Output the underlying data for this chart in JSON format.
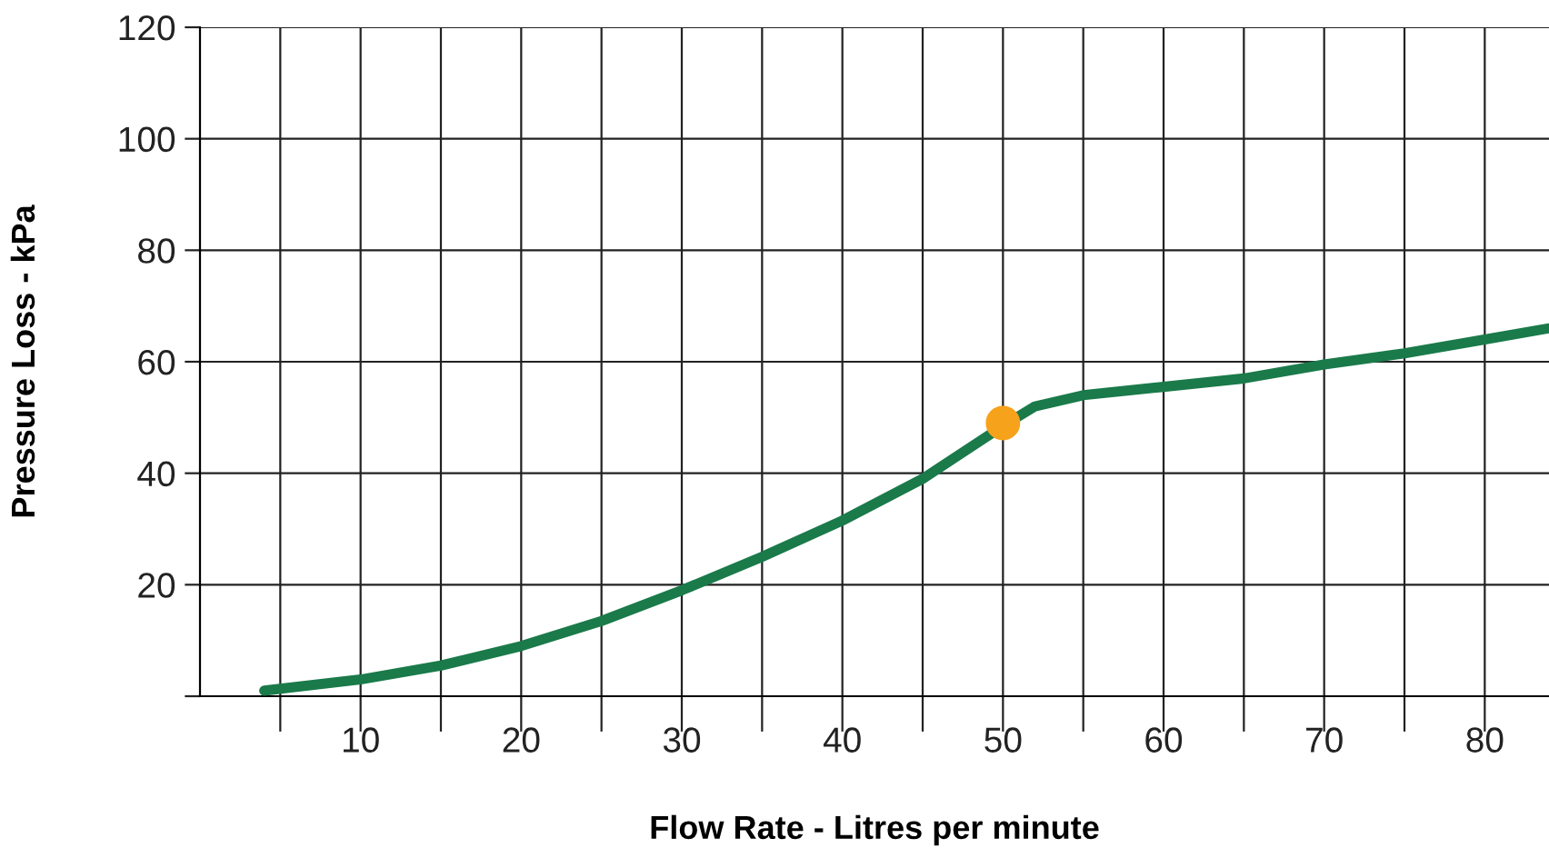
{
  "chart_data": {
    "type": "line",
    "xlabel": "Flow Rate - Litres per minute",
    "ylabel": "Pressure Loss - kPa",
    "xlim": [
      0,
      84
    ],
    "ylim": [
      0,
      120
    ],
    "xticks": [
      {
        "value": 5,
        "label": null
      },
      10,
      {
        "value": 15,
        "label": null
      },
      20,
      {
        "value": 25,
        "label": null
      },
      30,
      {
        "value": 35,
        "label": null
      },
      40,
      {
        "value": 45,
        "label": null
      },
      50,
      {
        "value": 55,
        "label": null
      },
      60,
      {
        "value": 65,
        "label": null
      },
      70,
      {
        "value": 75,
        "label": null
      },
      80
    ],
    "yticks": [
      {
        "value": 0,
        "label": null
      },
      20,
      40,
      60,
      80,
      100,
      120
    ],
    "grid": true,
    "line_style": "solid",
    "series": [
      {
        "color": "#1a7a4a",
        "marker": "none",
        "x": [
          4,
          10,
          15,
          20,
          25,
          30,
          35,
          40,
          45,
          50,
          52,
          55,
          60,
          65,
          70,
          75,
          80,
          84
        ],
        "values": [
          1,
          3,
          5.5,
          9,
          13.5,
          19,
          25,
          31.5,
          39,
          48.5,
          52,
          54,
          55.5,
          57,
          59.5,
          61.5,
          64,
          66
        ]
      },
      {
        "type": "scatter",
        "color": "#f7a21b",
        "marker": "circle",
        "x": [
          50
        ],
        "values": [
          49
        ]
      }
    ]
  }
}
